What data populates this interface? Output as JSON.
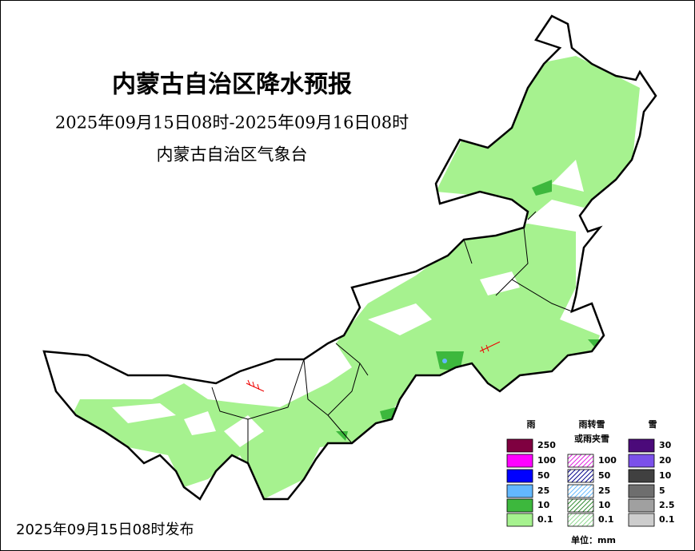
{
  "header": {
    "title": "内蒙古自治区降水预报",
    "period": "2025年09月15日08时-2025年09月16日08时",
    "issuer": "内蒙古自治区气象台"
  },
  "footer": {
    "issued": "2025年09月15日08时发布"
  },
  "legend": {
    "rain": {
      "title": "雨",
      "levels": [
        {
          "label": "250",
          "color": "#7f0040"
        },
        {
          "label": "100",
          "color": "#ff00ff"
        },
        {
          "label": "50",
          "color": "#0000ff"
        },
        {
          "label": "25",
          "color": "#63b8ff"
        },
        {
          "label": "10",
          "color": "#3db83d"
        },
        {
          "label": "0.1",
          "color": "#a6f28f"
        }
      ]
    },
    "mixed": {
      "title": [
        "雨转雪",
        "或雨夹雪"
      ],
      "levels": [
        {
          "label": "100",
          "color": "#e020e0"
        },
        {
          "label": "50",
          "color": "#00008b"
        },
        {
          "label": "25",
          "color": "#63b8ff"
        },
        {
          "label": "10",
          "color": "#2e8b2e"
        },
        {
          "label": "0.1",
          "color": "#8fd88f"
        }
      ]
    },
    "snow": {
      "title": "雪",
      "levels": [
        {
          "label": "30",
          "color": "#4b0a7a"
        },
        {
          "label": "20",
          "color": "#7b50ea"
        },
        {
          "label": "10",
          "color": "#404040"
        },
        {
          "label": "5",
          "color": "#6e6e6e"
        },
        {
          "label": "2.5",
          "color": "#a0a0a0"
        },
        {
          "label": "0.1",
          "color": "#cdcdcd"
        }
      ]
    },
    "unit": "单位：mm"
  }
}
